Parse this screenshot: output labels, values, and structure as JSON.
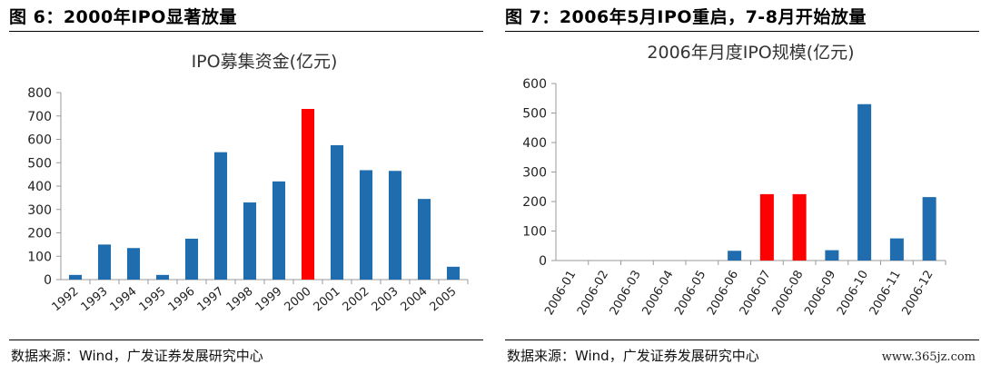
{
  "left_panel": {
    "figure_title": "图 6：2000年IPO显著放量",
    "source": "数据来源：Wind，广发证券发展研究中心"
  },
  "right_panel": {
    "figure_title": "图 7：2006年5月IPO重启，7-8月开始放量",
    "source": "数据来源：Wind，广发证券发展研究中心"
  },
  "watermark": "www.365jz.com",
  "colors": {
    "bar": "#1F6DAE",
    "highlight": "#FF0000",
    "axis": "#9a9a9a",
    "text": "#222222"
  },
  "chart_data": [
    {
      "type": "bar",
      "title": "IPO募集资金(亿元)",
      "xlabel": "",
      "ylabel": "",
      "categories": [
        "1992",
        "1993",
        "1994",
        "1995",
        "1996",
        "1997",
        "1998",
        "1999",
        "2000",
        "2001",
        "2002",
        "2003",
        "2004",
        "2005"
      ],
      "values": [
        20,
        150,
        135,
        20,
        175,
        545,
        330,
        420,
        730,
        575,
        468,
        465,
        345,
        55
      ],
      "highlight": [
        "2000"
      ],
      "ylim": [
        0,
        800
      ],
      "yticks": [
        0,
        100,
        200,
        300,
        400,
        500,
        600,
        700,
        800
      ],
      "grid": false,
      "legend": "none"
    },
    {
      "type": "bar",
      "title": "2006年月度IPO规模(亿元)",
      "xlabel": "",
      "ylabel": "",
      "categories": [
        "2006-01",
        "2006-02",
        "2006-03",
        "2006-04",
        "2006-05",
        "2006-06",
        "2006-07",
        "2006-08",
        "2006-09",
        "2006-10",
        "2006-11",
        "2006-12"
      ],
      "values": [
        0,
        0,
        0,
        0,
        0,
        33,
        225,
        225,
        35,
        530,
        75,
        215
      ],
      "highlight": [
        "2006-07",
        "2006-08"
      ],
      "ylim": [
        0,
        600
      ],
      "yticks": [
        0,
        100,
        200,
        300,
        400,
        500,
        600
      ],
      "grid": false,
      "legend": "none"
    }
  ]
}
